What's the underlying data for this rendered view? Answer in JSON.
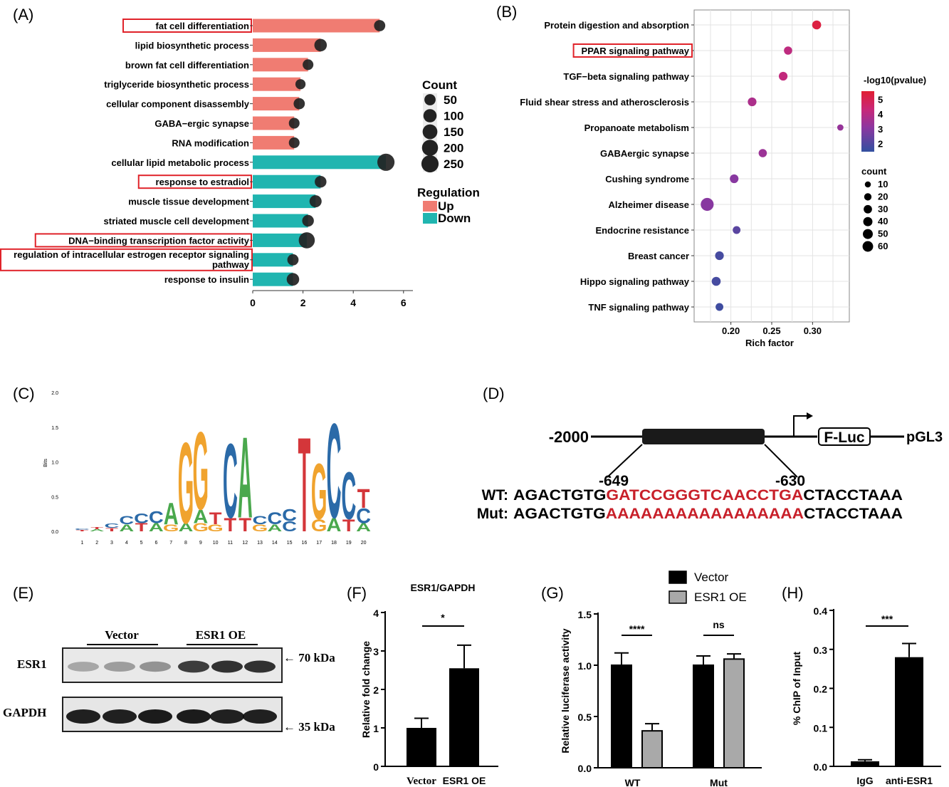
{
  "panels": {
    "a": "(A)",
    "b": "(B)",
    "c": "(C)",
    "d": "(D)",
    "e": "(E)",
    "f": "(F)",
    "g": "(G)",
    "h": "(H)"
  },
  "chart_data": [
    {
      "id": "A",
      "type": "bar",
      "categories": [
        "fat cell differentiation",
        "lipid biosynthetic process",
        "brown fat cell differentiation",
        "triglyceride biosynthetic process",
        "cellular component disassembly",
        "GABA−ergic synapse",
        "RNA modification",
        "cellular lipid metabolic process",
        "response to estradiol",
        "muscle tissue development",
        "striated muscle cell development",
        "DNA−binding transcription factor activity",
        "regulation of intracellular estrogen receptor signaling pathway",
        "response to insulin"
      ],
      "values": [
        5.05,
        2.7,
        2.2,
        1.9,
        1.85,
        1.65,
        1.65,
        5.3,
        2.7,
        2.5,
        2.2,
        2.15,
        1.6,
        1.6
      ],
      "counts": [
        50,
        80,
        40,
        30,
        50,
        40,
        40,
        250,
        60,
        70,
        60,
        200,
        50,
        80
      ],
      "regulation": [
        "Up",
        "Up",
        "Up",
        "Up",
        "Up",
        "Up",
        "Up",
        "Down",
        "Down",
        "Down",
        "Down",
        "Down",
        "Down",
        "Down"
      ],
      "highlighted": [
        true,
        false,
        false,
        false,
        false,
        false,
        false,
        false,
        true,
        false,
        false,
        true,
        true,
        false
      ],
      "xlim": [
        0,
        6.5
      ],
      "xticks": [
        "0",
        "2",
        "4",
        "6"
      ],
      "legend": {
        "count_title": "Count",
        "count_levels": [
          "50",
          "100",
          "150",
          "200",
          "250"
        ],
        "regulation_title": "Regulation",
        "regulation_levels": [
          {
            "label": "Up",
            "color": "#f07c72"
          },
          {
            "label": "Down",
            "color": "#20b5b0"
          }
        ]
      },
      "colors": {
        "Up": "#f07c72",
        "Down": "#20b5b0",
        "highlight": "#e0232a"
      }
    },
    {
      "id": "B",
      "type": "scatter",
      "categories": [
        "Protein digestion and absorption",
        "PPAR signaling pathway",
        "TGF−beta signaling pathway",
        "Fluid shear stress and atherosclerosis",
        "Propanoate metabolism",
        "GABAergic synapse",
        "Cushing syndrome",
        "Alzheimer disease",
        "Endocrine resistance",
        "Breast cancer",
        "Hippo signaling pathway",
        "TNF signaling pathway"
      ],
      "x": [
        0.305,
        0.27,
        0.264,
        0.226,
        0.334,
        0.239,
        0.204,
        0.171,
        0.207,
        0.186,
        0.182,
        0.186
      ],
      "count": [
        20,
        15,
        18,
        18,
        5,
        15,
        18,
        60,
        12,
        18,
        20,
        12
      ],
      "log10p": [
        5.3,
        4.0,
        4.1,
        3.6,
        3.1,
        3.2,
        2.8,
        2.8,
        2.1,
        1.8,
        1.8,
        1.7
      ],
      "highlighted": [
        false,
        true,
        false,
        false,
        false,
        false,
        false,
        false,
        false,
        false,
        false,
        false
      ],
      "xlabel": "Rich factor",
      "xlim": [
        0.155,
        0.345
      ],
      "xticks": [
        "0.20",
        "0.25",
        "0.30"
      ],
      "legend": {
        "color_title": "-log10(pvalue)",
        "color_ticks": [
          "5",
          "4",
          "3",
          "2"
        ],
        "color_range": [
          1.5,
          5.6
        ],
        "size_title": "count",
        "size_levels": [
          "10",
          "20",
          "30",
          "40",
          "50",
          "60"
        ]
      }
    },
    {
      "id": "C",
      "type": "other",
      "subtype": "sequence logo",
      "ylabel": "Bits",
      "yticks": [
        "0.0",
        "0.5",
        "1.0",
        "1.5",
        "2.0"
      ],
      "positions": [
        "1",
        "2",
        "3",
        "4",
        "5",
        "6",
        "7",
        "8",
        "9",
        "10",
        "11",
        "12",
        "13",
        "14",
        "15",
        "16",
        "17",
        "18",
        "19",
        "20"
      ],
      "columns": [
        [
          [
            "T",
            0.02
          ],
          [
            "C",
            0.02
          ]
        ],
        [
          [
            "A",
            0.03
          ],
          [
            "T",
            0.03
          ]
        ],
        [
          [
            "T",
            0.05
          ],
          [
            "C",
            0.06
          ]
        ],
        [
          [
            "A",
            0.1
          ],
          [
            "C",
            0.12
          ]
        ],
        [
          [
            "T",
            0.12
          ],
          [
            "C",
            0.14
          ]
        ],
        [
          [
            "A",
            0.12
          ],
          [
            "C",
            0.18
          ]
        ],
        [
          [
            "G",
            0.1
          ],
          [
            "A",
            0.32
          ]
        ],
        [
          [
            "A",
            0.12
          ],
          [
            "G",
            1.2
          ]
        ],
        [
          [
            "G",
            0.12
          ],
          [
            "A",
            0.2
          ],
          [
            "G",
            1.15
          ]
        ],
        [
          [
            "G",
            0.1
          ],
          [
            "T",
            0.18
          ]
        ],
        [
          [
            "T",
            0.2
          ],
          [
            "C",
            1.1
          ]
        ],
        [
          [
            "T",
            0.2
          ],
          [
            "A",
            1.2
          ]
        ],
        [
          [
            "G",
            0.1
          ],
          [
            "C",
            0.12
          ]
        ],
        [
          [
            "A",
            0.1
          ],
          [
            "C",
            0.18
          ]
        ],
        [
          [
            "C",
            0.15
          ],
          [
            "C",
            0.18
          ]
        ],
        [
          [
            "T",
            1.4
          ]
        ],
        [
          [
            "G",
            0.18
          ],
          [
            "G",
            0.82
          ]
        ],
        [
          [
            "A",
            0.2
          ],
          [
            "C",
            1.4
          ]
        ],
        [
          [
            "T",
            0.18
          ],
          [
            "C",
            0.7
          ]
        ],
        [
          [
            "A",
            0.12
          ],
          [
            "C",
            0.22
          ],
          [
            "T",
            0.28
          ]
        ]
      ]
    },
    {
      "id": "F",
      "type": "bar",
      "title": "ESR1/GAPDH",
      "ylabel": "Relative fold change",
      "categories": [
        "Vector",
        "ESR1 OE"
      ],
      "values": [
        1.0,
        2.55
      ],
      "errors": [
        0.25,
        0.6
      ],
      "ylim": [
        0,
        4
      ],
      "yticks": [
        "0",
        "1",
        "2",
        "3",
        "4"
      ],
      "significance": "*"
    },
    {
      "id": "G",
      "type": "bar",
      "ylabel": "Relative  luciferase activity",
      "categories": [
        "WT",
        "Mut"
      ],
      "series": [
        {
          "name": "Vector",
          "values": [
            1.0,
            1.0
          ],
          "errors": [
            0.12,
            0.09
          ],
          "color": "#000000"
        },
        {
          "name": "ESR1 OE",
          "values": [
            0.36,
            1.06
          ],
          "errors": [
            0.07,
            0.05
          ],
          "color": "#a9a9a9"
        }
      ],
      "ylim": [
        0,
        1.5
      ],
      "yticks": [
        "0.0",
        "0.5",
        "1.0",
        "1.5"
      ],
      "significance": [
        "****",
        "ns"
      ]
    },
    {
      "id": "H",
      "type": "bar",
      "ylabel": "% ChIP of Input",
      "categories": [
        "IgG",
        "anti-ESR1"
      ],
      "values": [
        0.013,
        0.28
      ],
      "errors": [
        0.004,
        0.035
      ],
      "ylim": [
        0,
        0.4
      ],
      "yticks": [
        "0.0",
        "0.1",
        "0.2",
        "0.3",
        "0.4"
      ],
      "significance": "***"
    }
  ],
  "promoter": {
    "start": "-2000",
    "vector": "pGL3",
    "reporter": "F-Luc",
    "site_start": "-649",
    "site_end": "-630",
    "wt_label": "WT:",
    "wt_prefix": "AGACTGTG",
    "wt_site": "GATCCGGGTCAACCTGA",
    "wt_suffix": "CTACCTAAA",
    "mut_label": "Mut:",
    "mut_prefix": "AGACTGTG",
    "mut_site": "AAAAAAAAAAAAAAAAA",
    "mut_suffix": "CTACCTAAA"
  },
  "western": {
    "group1": "Vector",
    "group2": "ESR1 OE",
    "row1": "ESR1",
    "row2": "GAPDH",
    "size1": "← 70 kDa",
    "size2": "← 35 kDa",
    "esr1_intensity": [
      0.3,
      0.35,
      0.4,
      0.8,
      0.85,
      0.85
    ],
    "gapdh_intensity": [
      0.9,
      0.9,
      0.92,
      0.92,
      0.9,
      0.9
    ]
  }
}
